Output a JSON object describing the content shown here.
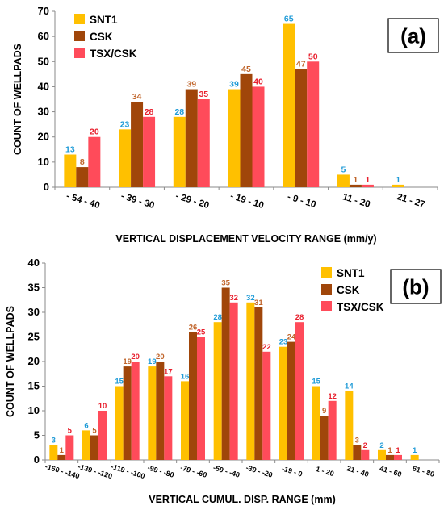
{
  "chart_data": [
    {
      "panel_label": "(a)",
      "type": "bar",
      "ylabel": "COUNT OF WELLPADS",
      "xlabel": "VERTICAL DISPLACEMENT VELOCITY RANGE (mm/y)",
      "ylim": [
        0,
        70
      ],
      "yticks": [
        0,
        10,
        20,
        30,
        40,
        50,
        60,
        70
      ],
      "grid": false,
      "legend_position": "top-left",
      "categories": [
        "- 54 - 40",
        "- 39 - 30",
        "- 29 - 20",
        "- 19 - 10",
        "- 9 - 10",
        "11 - 20",
        "21 - 27"
      ],
      "series": [
        {
          "name": "SNT1",
          "color": "#FFC000",
          "label_color": "#1F9BD7",
          "values": [
            13,
            23,
            28,
            39,
            65,
            5,
            1
          ]
        },
        {
          "name": "CSK",
          "color": "#A0460A",
          "label_color": "#C0642A",
          "values": [
            8,
            34,
            39,
            45,
            47,
            1,
            null
          ]
        },
        {
          "name": "TSX/CSK",
          "color": "#FF4B5A",
          "label_color": "#E8202E",
          "values": [
            20,
            28,
            35,
            40,
            50,
            1,
            null
          ]
        }
      ]
    },
    {
      "panel_label": "(b)",
      "type": "bar",
      "ylabel": "COUNT OF WELLPADS",
      "xlabel": "VERTICAL CUMUL. DISP.  RANGE (mm)",
      "ylim": [
        0,
        40
      ],
      "yticks": [
        0,
        5,
        10,
        15,
        20,
        25,
        30,
        35,
        40
      ],
      "grid": false,
      "legend_position": "top-right",
      "categories": [
        "-160 - -140",
        "-139 - -120",
        "-119 - -100",
        "-99 - -80",
        "-79 - -60",
        "-59 - -40",
        "-39 - -20",
        "-19 - 0",
        "1 - 20",
        "21 - 40",
        "41 - 60",
        "61 - 80"
      ],
      "series": [
        {
          "name": "SNT1",
          "color": "#FFC000",
          "label_color": "#1F9BD7",
          "values": [
            3,
            6,
            15,
            19,
            16,
            28,
            32,
            23,
            15,
            14,
            2,
            1
          ]
        },
        {
          "name": "CSK",
          "color": "#A0460A",
          "label_color": "#C0642A",
          "values": [
            1,
            5,
            19,
            20,
            26,
            35,
            31,
            24,
            9,
            3,
            1,
            null
          ]
        },
        {
          "name": "TSX/CSK",
          "color": "#FF4B5A",
          "label_color": "#E8202E",
          "values": [
            5,
            10,
            20,
            17,
            25,
            32,
            22,
            28,
            12,
            2,
            1,
            null
          ]
        }
      ]
    }
  ]
}
